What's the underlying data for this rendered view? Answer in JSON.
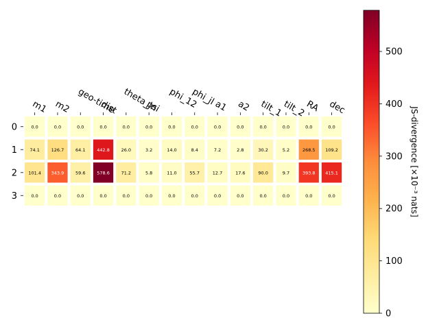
{
  "chart_data": {
    "type": "heatmap",
    "title": "",
    "x_tick_labels": [
      "m1",
      "m2",
      "geo-time",
      "dist",
      "theta_jn",
      "psi",
      "phi_12",
      "phi_jl",
      "a1",
      "a2",
      "tilt_1",
      "tilt_2",
      "RA",
      "dec"
    ],
    "y_tick_labels": [
      "0",
      "1",
      "2",
      "3"
    ],
    "values": [
      [
        0.0,
        0.0,
        0.0,
        0.0,
        0.0,
        0.0,
        0.0,
        0.0,
        0.0,
        0.0,
        0.0,
        0.0,
        0.0,
        0.0
      ],
      [
        74.1,
        126.7,
        64.1,
        442.8,
        26.0,
        3.2,
        14.0,
        8.4,
        7.2,
        2.8,
        30.2,
        5.2,
        268.5,
        109.2
      ],
      [
        101.4,
        343.9,
        59.6,
        578.6,
        71.2,
        5.8,
        11.0,
        55.7,
        12.7,
        17.6,
        90.0,
        9.7,
        393.8,
        415.1
      ],
      [
        0.0,
        0.0,
        0.0,
        0.0,
        0.0,
        0.0,
        0.0,
        0.0,
        0.0,
        0.0,
        0.0,
        0.0,
        0.0,
        0.0
      ]
    ],
    "colorbar": {
      "label": "JS-divergence [×10⁻³ nats]",
      "range": [
        0,
        578.6
      ],
      "ticks": [
        0,
        100,
        200,
        300,
        400,
        500
      ],
      "colormap": "YlOrRd"
    },
    "grid": false
  }
}
